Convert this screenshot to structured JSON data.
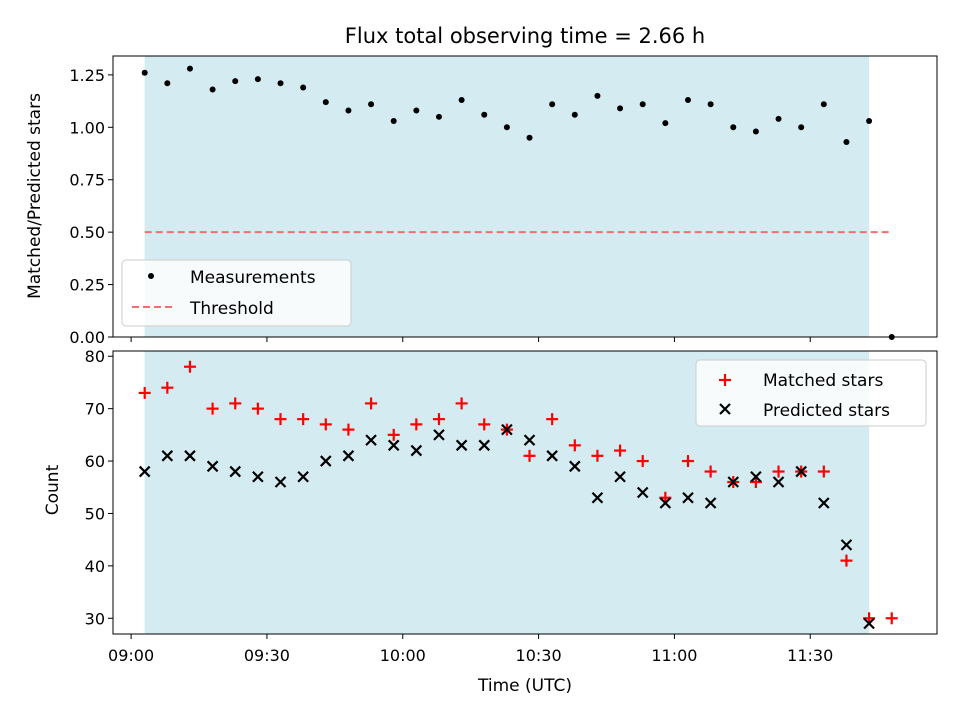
{
  "chart_data": [
    {
      "type": "scatter",
      "title": "Flux total observing time = 2.66 h",
      "xlabel": "",
      "ylabel": "Matched/Predicted stars",
      "ylim": [
        0,
        1.34
      ],
      "yticks": [
        "0.00",
        "0.25",
        "0.50",
        "0.75",
        "1.00",
        "1.25"
      ],
      "ytick_values": [
        0,
        0.25,
        0.5,
        0.75,
        1.0,
        1.25
      ],
      "shaded_region": {
        "start": "09:03",
        "end": "11:43",
        "color": "#d4ebf1"
      },
      "threshold": {
        "value": 0.5,
        "start": "09:03",
        "end": "11:48",
        "color": "#f07070"
      },
      "legend": {
        "position": "lower-left",
        "entries": [
          "Measurements",
          "Threshold"
        ]
      },
      "series": [
        {
          "name": "Measurements",
          "color": "#000000",
          "marker": "dot",
          "x": [
            "09:03",
            "09:08",
            "09:13",
            "09:18",
            "09:23",
            "09:28",
            "09:33",
            "09:38",
            "09:43",
            "09:48",
            "09:53",
            "09:58",
            "10:03",
            "10:08",
            "10:13",
            "10:18",
            "10:23",
            "10:28",
            "10:33",
            "10:38",
            "10:43",
            "10:48",
            "10:53",
            "10:58",
            "11:03",
            "11:08",
            "11:13",
            "11:18",
            "11:23",
            "11:28",
            "11:33",
            "11:38",
            "11:43",
            "11:48"
          ],
          "y": [
            1.26,
            1.21,
            1.28,
            1.18,
            1.22,
            1.23,
            1.21,
            1.19,
            1.12,
            1.08,
            1.11,
            1.03,
            1.08,
            1.05,
            1.13,
            1.06,
            1.0,
            0.95,
            1.11,
            1.06,
            1.15,
            1.09,
            1.11,
            1.02,
            1.13,
            1.11,
            1.0,
            0.98,
            1.04,
            1.0,
            1.11,
            0.93,
            1.03,
            0.0
          ]
        }
      ]
    },
    {
      "type": "scatter",
      "title": "",
      "xlabel": "Time (UTC)",
      "ylabel": "Count",
      "ylim": [
        27,
        81
      ],
      "yticks": [
        "30",
        "40",
        "50",
        "60",
        "70",
        "80"
      ],
      "ytick_values": [
        30,
        40,
        50,
        60,
        70,
        80
      ],
      "xticks": [
        "09:00",
        "09:30",
        "10:00",
        "10:30",
        "11:00",
        "11:30"
      ],
      "xlim": [
        "08:56",
        "11:58"
      ],
      "shaded_region": {
        "start": "09:03",
        "end": "11:43",
        "color": "#d4ebf1"
      },
      "legend": {
        "position": "top-right",
        "entries": [
          "Matched stars",
          "Predicted stars"
        ]
      },
      "series": [
        {
          "name": "Matched stars",
          "color": "#ff0000",
          "marker": "plus",
          "x": [
            "09:03",
            "09:08",
            "09:13",
            "09:18",
            "09:23",
            "09:28",
            "09:33",
            "09:38",
            "09:43",
            "09:48",
            "09:53",
            "09:58",
            "10:03",
            "10:08",
            "10:13",
            "10:18",
            "10:23",
            "10:28",
            "10:33",
            "10:38",
            "10:43",
            "10:48",
            "10:53",
            "10:58",
            "11:03",
            "11:08",
            "11:13",
            "11:18",
            "11:23",
            "11:28",
            "11:33",
            "11:38",
            "11:43",
            "11:48"
          ],
          "y": [
            73,
            74,
            78,
            70,
            71,
            70,
            68,
            68,
            67,
            66,
            71,
            65,
            67,
            68,
            71,
            67,
            66,
            61,
            68,
            63,
            61,
            62,
            60,
            53,
            60,
            58,
            56,
            56,
            58,
            58,
            58,
            41,
            30,
            30
          ]
        },
        {
          "name": "Predicted stars",
          "color": "#000000",
          "marker": "x",
          "x": [
            "09:03",
            "09:08",
            "09:13",
            "09:18",
            "09:23",
            "09:28",
            "09:33",
            "09:38",
            "09:43",
            "09:48",
            "09:53",
            "09:58",
            "10:03",
            "10:08",
            "10:13",
            "10:18",
            "10:23",
            "10:28",
            "10:33",
            "10:38",
            "10:43",
            "10:48",
            "10:53",
            "10:58",
            "11:03",
            "11:08",
            "11:13",
            "11:18",
            "11:23",
            "11:28",
            "11:33",
            "11:38",
            "11:43"
          ],
          "y": [
            58,
            61,
            61,
            59,
            58,
            57,
            56,
            57,
            60,
            61,
            64,
            63,
            62,
            65,
            63,
            63,
            66,
            64,
            61,
            59,
            53,
            57,
            54,
            52,
            53,
            52,
            56,
            57,
            56,
            58,
            52,
            44,
            29
          ]
        }
      ]
    }
  ]
}
